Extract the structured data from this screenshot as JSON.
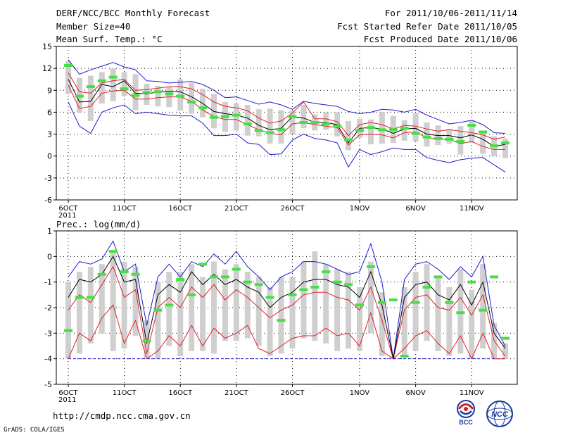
{
  "header": {
    "title": "DERF/NCC/BCC Monthly Forecast",
    "member": "Member Size=40",
    "variable": "Mean Surf. Temp.: °C",
    "period": "For 2011/10/06-2011/11/14",
    "started": "Fcst Started Refer Date 2011/10/05",
    "produced": "Fcst Produced Date 2011/10/06"
  },
  "prec_label": "Prec.: log(mm/d)",
  "footer": {
    "url": "http://cmdp.ncc.cma.gov.cn",
    "credit": "GrADS: COLA/IGES"
  },
  "logos": {
    "bcc": "BCC",
    "ncc": "NCC"
  },
  "colors": {
    "mean": "#000000",
    "spread": "#e0202c",
    "extreme": "#1c1cd0",
    "box": "#cfcfcf",
    "obs": "#44e044",
    "grid": "#000000"
  },
  "chart_data": [
    {
      "type": "line",
      "name": "temperature",
      "ylim": [
        -6,
        15
      ],
      "yticks": [
        "15",
        "12",
        "9",
        "6",
        "3",
        "0",
        "-3",
        "-6"
      ],
      "ytick_values": [
        15,
        12,
        9,
        6,
        3,
        0,
        -3,
        -6
      ],
      "xtick_labels": [
        "6OCT",
        "11OCT",
        "16OCT",
        "21OCT",
        "26OCT",
        "1NOV",
        "6NOV",
        "11NOV"
      ],
      "xtick_days": [
        1,
        6,
        11,
        16,
        21,
        27,
        32,
        37
      ],
      "year_label": "2011",
      "days": 40,
      "series": [
        {
          "name": "max",
          "values": [
            13.2,
            11.2,
            11.8,
            12.3,
            12.8,
            12.2,
            11.8,
            10.3,
            10.2,
            10.0,
            10.1,
            10.2,
            9.8,
            9.0,
            8.0,
            8.1,
            7.6,
            7.1,
            7.4,
            7.0,
            6.4,
            7.5,
            7.2,
            7.0,
            6.8,
            6.1,
            5.8,
            6.0,
            6.4,
            6.3,
            6.0,
            6.4,
            5.6,
            5.0,
            4.4,
            4.6,
            4.9,
            4.3,
            3.2,
            3.1
          ]
        },
        {
          "name": "upper",
          "values": [
            11.4,
            8.8,
            8.6,
            10.0,
            10.3,
            10.5,
            9.0,
            9.1,
            9.3,
            9.5,
            9.5,
            9.2,
            8.4,
            7.4,
            6.8,
            6.6,
            6.2,
            5.2,
            4.5,
            4.8,
            5.9,
            7.4,
            5.1,
            5.1,
            4.7,
            2.8,
            4.3,
            4.6,
            4.3,
            3.7,
            4.2,
            4.1,
            3.7,
            3.4,
            3.6,
            3.4,
            3.2,
            2.9,
            2.3,
            2.6
          ]
        },
        {
          "name": "mean",
          "values": [
            10.5,
            7.4,
            7.5,
            9.8,
            9.5,
            10.3,
            8.6,
            8.5,
            8.8,
            8.8,
            8.8,
            8.1,
            7.2,
            6.1,
            5.8,
            5.6,
            5.2,
            4.2,
            3.6,
            3.8,
            5.4,
            5.2,
            4.6,
            4.6,
            4.3,
            1.8,
            3.8,
            3.9,
            3.7,
            3.1,
            3.7,
            3.8,
            3.0,
            2.8,
            2.8,
            2.5,
            2.9,
            2.3,
            1.3,
            1.6
          ]
        },
        {
          "name": "lower",
          "values": [
            9.7,
            6.5,
            6.8,
            8.6,
            8.9,
            9.0,
            7.8,
            7.8,
            8.0,
            8.1,
            8.1,
            7.5,
            6.3,
            5.4,
            5.0,
            5.0,
            4.3,
            3.6,
            3.1,
            2.9,
            4.4,
            4.6,
            4.3,
            4.1,
            3.9,
            1.5,
            2.9,
            3.0,
            2.9,
            2.5,
            3.2,
            3.3,
            2.5,
            2.3,
            2.3,
            1.7,
            2.0,
            1.3,
            0.9,
            0.9
          ]
        },
        {
          "name": "min",
          "values": [
            7.4,
            4.1,
            3.1,
            6.0,
            6.6,
            7.0,
            5.8,
            6.0,
            5.8,
            5.6,
            5.5,
            5.5,
            4.5,
            2.8,
            2.8,
            3.0,
            1.8,
            1.6,
            0.2,
            0.3,
            2.2,
            3.0,
            2.4,
            2.2,
            1.8,
            -1.5,
            0.9,
            0.2,
            0.6,
            1.1,
            0.9,
            0.9,
            -0.2,
            -0.6,
            -0.9,
            -0.5,
            -0.3,
            -0.2,
            -1.2,
            -2.2
          ]
        },
        {
          "name": "box_top",
          "values": [
            13.0,
            10.7,
            11.0,
            11.5,
            12.0,
            11.5,
            11.2,
            9.9,
            9.6,
            9.5,
            10.5,
            10.0,
            9.2,
            8.5,
            7.4,
            7.2,
            7.0,
            6.4,
            6.5,
            6.3,
            6.2,
            7.0,
            5.7,
            6.0,
            6.0,
            4.8,
            5.1,
            5.0,
            6.0,
            5.5,
            4.9,
            5.9,
            4.6,
            4.2,
            3.7,
            4.1,
            4.9,
            3.1,
            2.7,
            2.4
          ]
        },
        {
          "name": "box_bottom",
          "values": [
            8.5,
            5.9,
            4.8,
            7.2,
            7.5,
            8.2,
            6.3,
            7.0,
            6.8,
            6.7,
            6.2,
            5.8,
            5.3,
            3.8,
            3.3,
            3.5,
            2.8,
            2.7,
            1.7,
            1.7,
            3.0,
            3.8,
            3.5,
            3.6,
            2.7,
            0.8,
            2.5,
            1.6,
            1.7,
            1.8,
            2.1,
            2.0,
            1.3,
            1.5,
            1.7,
            0.2,
            1.8,
            0.3,
            0.0,
            -0.3
          ]
        },
        {
          "name": "observed",
          "values": [
            12.4,
            8.2,
            9.5,
            10.3,
            10.8,
            9.2,
            8.3,
            8.7,
            8.8,
            8.5,
            8.2,
            7.4,
            6.6,
            5.3,
            5.4,
            5.6,
            4.4,
            3.5,
            3.2,
            3.6,
            5.4,
            4.6,
            4.6,
            4.4,
            4.1,
            2.2,
            3.5,
            3.9,
            3.6,
            3.6,
            3.8,
            3.1,
            2.6,
            2.4,
            2.3,
            2.0,
            4.2,
            3.3,
            1.4,
            1.8
          ]
        }
      ]
    },
    {
      "type": "line",
      "name": "precipitation",
      "ylim": [
        -5,
        1
      ],
      "yticks": [
        "1",
        "0",
        "-1",
        "-2",
        "-3",
        "-4",
        "-5"
      ],
      "ytick_values": [
        1,
        0,
        -1,
        -2,
        -3,
        -4,
        -5
      ],
      "xtick_labels": [
        "6OCT",
        "11OCT",
        "16OCT",
        "21OCT",
        "26OCT",
        "1NOV",
        "6NOV",
        "11NOV"
      ],
      "xtick_days": [
        1,
        6,
        11,
        16,
        21,
        27,
        32,
        37
      ],
      "year_label": "2011",
      "days": 40,
      "series": [
        {
          "name": "max",
          "values": [
            -0.8,
            -0.2,
            -0.3,
            -0.1,
            0.6,
            -0.6,
            -0.3,
            -2.7,
            -0.8,
            -0.3,
            -0.8,
            -0.2,
            -0.4,
            0.1,
            -0.3,
            0.2,
            -0.4,
            -0.8,
            -1.3,
            -0.8,
            -0.6,
            -0.2,
            -0.2,
            -0.3,
            -0.5,
            -0.7,
            -0.6,
            0.5,
            -1.0,
            -4.0,
            -0.9,
            -0.3,
            -0.2,
            -0.5,
            -0.9,
            -0.4,
            -0.8,
            0.0,
            -2.7,
            -3.5
          ]
        },
        {
          "name": "mean",
          "values": [
            -1.6,
            -0.9,
            -1.0,
            -0.7,
            0.0,
            -1.0,
            -0.9,
            -3.4,
            -1.5,
            -1.1,
            -1.4,
            -0.6,
            -1.1,
            -0.7,
            -1.1,
            -0.9,
            -1.2,
            -1.4,
            -2.0,
            -1.6,
            -1.4,
            -1.0,
            -0.9,
            -0.9,
            -1.1,
            -1.2,
            -1.6,
            -0.6,
            -1.9,
            -4.0,
            -1.6,
            -1.1,
            -1.0,
            -1.5,
            -1.7,
            -1.1,
            -1.9,
            -1.0,
            -3.0,
            -3.6
          ]
        },
        {
          "name": "upper_spread",
          "values": [
            -2.1,
            -1.5,
            -1.8,
            -1.1,
            -0.4,
            -1.6,
            -1.3,
            -3.8,
            -2.0,
            -1.6,
            -2.0,
            -1.2,
            -1.6,
            -1.1,
            -1.7,
            -1.3,
            -1.6,
            -2.0,
            -2.4,
            -2.1,
            -1.9,
            -1.5,
            -1.4,
            -1.4,
            -1.6,
            -1.7,
            -2.1,
            -1.2,
            -2.5,
            -4.0,
            -2.1,
            -1.6,
            -1.5,
            -2.0,
            -2.1,
            -1.6,
            -2.3,
            -1.5,
            -3.3,
            -3.9
          ]
        },
        {
          "name": "lower_spread",
          "values": [
            -4.0,
            -3.0,
            -3.3,
            -2.4,
            -1.9,
            -3.4,
            -2.5,
            -4.0,
            -3.7,
            -3.1,
            -3.5,
            -2.7,
            -3.5,
            -2.8,
            -3.2,
            -3.0,
            -2.7,
            -3.6,
            -3.8,
            -3.5,
            -3.2,
            -3.1,
            -3.1,
            -2.8,
            -3.1,
            -3.0,
            -3.5,
            -2.2,
            -3.7,
            -4.0,
            -3.6,
            -3.1,
            -2.9,
            -3.4,
            -3.8,
            -3.1,
            -4.0,
            -3.0,
            -4.0,
            -4.0
          ]
        },
        {
          "name": "box_top",
          "values": [
            -1.0,
            -0.6,
            -0.4,
            -0.3,
            0.2,
            -0.2,
            -0.4,
            -2.5,
            -1.0,
            -0.6,
            -0.6,
            -0.3,
            -0.8,
            -0.2,
            -0.5,
            -0.3,
            -0.6,
            -0.8,
            -1.2,
            -0.8,
            -0.8,
            -0.2,
            0.2,
            -0.3,
            -0.5,
            -0.6,
            -1.2,
            -0.2,
            -1.4,
            -3.9,
            -1.2,
            -0.6,
            -0.3,
            -0.8,
            -1.2,
            -0.5,
            -1.3,
            -0.3,
            -2.6,
            -3.4
          ]
        },
        {
          "name": "box_bottom",
          "values": [
            -4.0,
            -3.8,
            -3.4,
            -3.0,
            -3.7,
            -3.6,
            -3.1,
            -4.0,
            -4.0,
            -3.5,
            -3.9,
            -3.7,
            -3.7,
            -3.8,
            -3.3,
            -3.3,
            -3.2,
            -3.5,
            -3.9,
            -3.8,
            -3.6,
            -3.2,
            -3.3,
            -3.4,
            -3.7,
            -3.6,
            -3.7,
            -3.0,
            -3.9,
            -4.0,
            -3.9,
            -3.7,
            -3.3,
            -3.7,
            -3.9,
            -3.8,
            -4.0,
            -3.6,
            -4.0,
            -4.0
          ]
        },
        {
          "name": "observed",
          "values": [
            -2.9,
            -1.6,
            -1.6,
            -0.7,
            0.2,
            -0.6,
            -0.7,
            -3.3,
            -2.1,
            -1.9,
            -0.9,
            -1.5,
            -0.3,
            -0.8,
            -0.8,
            -0.5,
            -1.0,
            -1.1,
            -1.6,
            -2.5,
            -1.5,
            -1.3,
            -1.2,
            -0.6,
            -1.0,
            -1.1,
            -1.9,
            -0.4,
            -1.8,
            -1.7,
            -3.9,
            -1.8,
            -1.2,
            -0.8,
            -1.8,
            -2.2,
            -1.0,
            -2.1,
            -0.8,
            -3.2
          ]
        },
        {
          "name": "baseline",
          "values": [
            -4,
            -4,
            -4,
            -4,
            -4,
            -4,
            -4,
            -4,
            -4,
            -4,
            -4,
            -4,
            -4,
            -4,
            -4,
            -4,
            -4,
            -4,
            -4,
            -4,
            -4,
            -4,
            -4,
            -4,
            -4,
            -4,
            -4,
            -4,
            -4,
            -4,
            -4,
            -4,
            -4,
            -4,
            -4,
            -4,
            -4,
            -4,
            -4,
            -4
          ]
        }
      ]
    }
  ]
}
